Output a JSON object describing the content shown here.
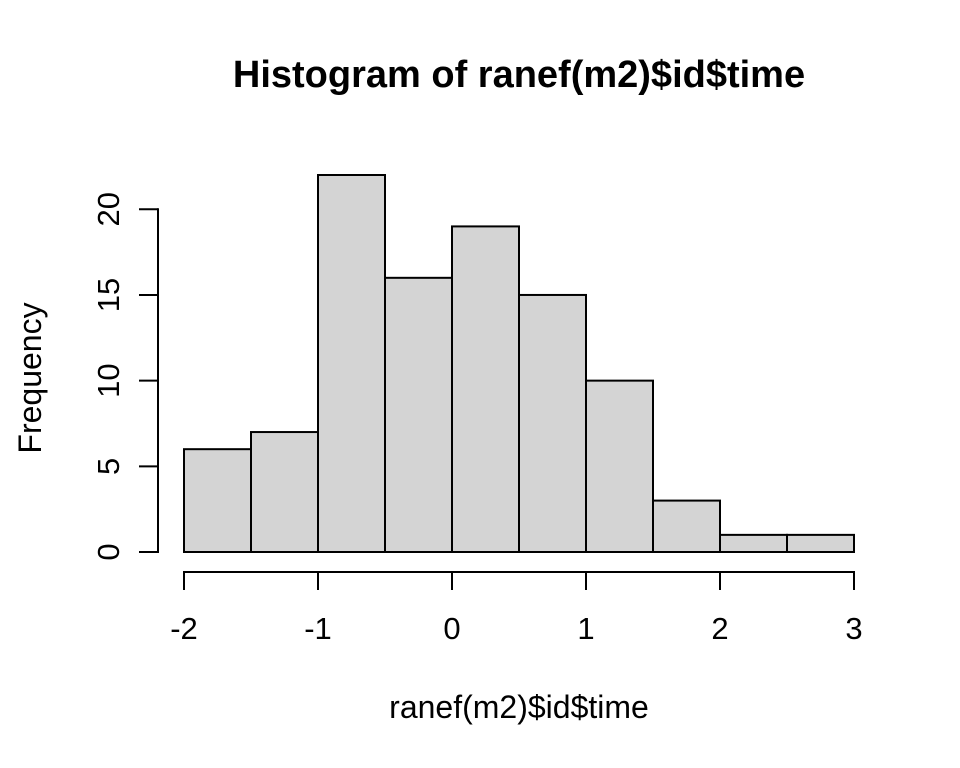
{
  "chart_data": {
    "type": "bar",
    "subtype": "histogram",
    "title": "Histogram of ranef(m2)$id$time",
    "xlabel": "ranef(m2)$id$time",
    "ylabel": "Frequency",
    "breaks": [
      -2,
      -1.5,
      -1,
      -0.5,
      0,
      0.5,
      1,
      1.5,
      2,
      2.5,
      3
    ],
    "counts": [
      6,
      7,
      22,
      16,
      19,
      15,
      10,
      3,
      1,
      1
    ],
    "xticks": [
      -2,
      -1,
      0,
      1,
      2,
      3
    ],
    "yticks": [
      0,
      5,
      10,
      15,
      20
    ],
    "xlim": [
      -2,
      3
    ],
    "ylim": [
      0,
      22
    ],
    "grid": false,
    "legend": false,
    "bar_fill": "#d4d4d4",
    "bar_stroke": "#000000",
    "axis_color": "#000000",
    "background": "#ffffff"
  }
}
